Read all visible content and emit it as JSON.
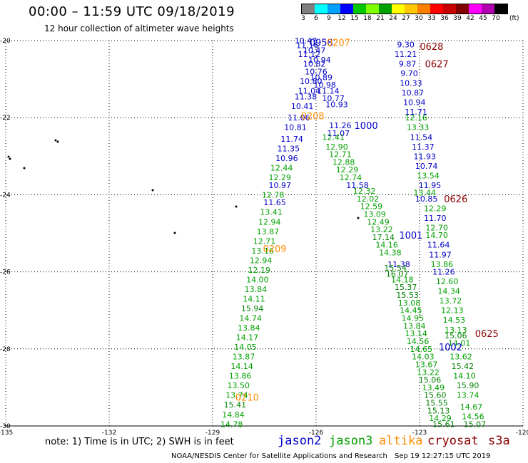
{
  "title": "00:00 – 11:59 UTC 09/18/2019",
  "subtitle": "12 hour collection of altimeter wave heights",
  "colorbar": {
    "labels": [
      "3",
      "6",
      "9",
      "12",
      "15",
      "18",
      "21",
      "24",
      "27",
      "30",
      "33",
      "36",
      "39",
      "42",
      "45",
      "70"
    ],
    "units": "(ft)",
    "colors": [
      "#808080",
      "#00ffff",
      "#00a0ff",
      "#0000ff",
      "#00c800",
      "#80ff00",
      "#00a000",
      "#ffff00",
      "#ffc800",
      "#ff8000",
      "#ff0000",
      "#c80000",
      "#800000",
      "#ff00ff",
      "#b000b0",
      "#000000"
    ]
  },
  "axes": {
    "lat_labels": [
      "-20",
      "-22",
      "-24",
      "-26",
      "-28",
      "-30"
    ],
    "lon_labels": [
      "-135",
      "-132",
      "-129",
      "-126",
      "-123",
      "-120"
    ]
  },
  "satellites": {
    "jason2": {
      "name": "jason2",
      "color": "#0000c8"
    },
    "jason3": {
      "name": "jason3",
      "color": "#00a000"
    },
    "altika": {
      "name": "altika",
      "color": "#ff8c00"
    },
    "cryosat": {
      "name": "cryosat",
      "color": "#8b0000"
    },
    "s3a": {
      "name": "s3a",
      "color": "#8b0000"
    }
  },
  "track_times": [
    {
      "text": "0958",
      "color": "#0000c8",
      "lat": -20.05,
      "lon": -125.85
    },
    {
      "text": "0207",
      "color": "#ff8c00",
      "lat": -20.05,
      "lon": -125.35
    },
    {
      "text": "0628",
      "color": "#8b0000",
      "lat": -20.15,
      "lon": -122.65
    },
    {
      "text": "0627",
      "color": "#8b0000",
      "lat": -20.6,
      "lon": -122.5
    },
    {
      "text": "0208",
      "color": "#ff8c00",
      "lat": -21.95,
      "lon": -126.1
    },
    {
      "text": "1000",
      "color": "#0000c8",
      "lat": -22.2,
      "lon": -124.55
    },
    {
      "text": "0626",
      "color": "#8b0000",
      "lat": -24.1,
      "lon": -121.95
    },
    {
      "text": "1001",
      "color": "#0000c8",
      "lat": -25.05,
      "lon": -123.25
    },
    {
      "text": "0209",
      "color": "#ff8c00",
      "lat": -25.4,
      "lon": -127.2
    },
    {
      "text": "0625",
      "color": "#8b0000",
      "lat": -27.6,
      "lon": -121.05
    },
    {
      "text": "1002",
      "color": "#0000c8",
      "lat": -27.95,
      "lon": -122.1
    },
    {
      "text": "0210",
      "color": "#ff8c00",
      "lat": -29.25,
      "lon": -128.0
    }
  ],
  "wave_heights": [
    {
      "v": "10.47",
      "c": "#0000c8",
      "lat": -20.0,
      "lon": -126.3
    },
    {
      "v": "11.16",
      "c": "#0000c8",
      "lat": -20.12,
      "lon": -126.25
    },
    {
      "v": "10.47",
      "c": "#0000c8",
      "lat": -20.25,
      "lon": -126.05
    },
    {
      "v": "11.12",
      "c": "#0000c8",
      "lat": -20.35,
      "lon": -126.2
    },
    {
      "v": "10.94",
      "c": "#0000c8",
      "lat": -20.5,
      "lon": -125.9
    },
    {
      "v": "10.82",
      "c": "#0000c8",
      "lat": -20.6,
      "lon": -126.05
    },
    {
      "v": "10.76",
      "c": "#0000c8",
      "lat": -20.8,
      "lon": -126.0
    },
    {
      "v": "10.89",
      "c": "#0000c8",
      "lat": -20.95,
      "lon": -125.85
    },
    {
      "v": "10.80",
      "c": "#0000c8",
      "lat": -21.05,
      "lon": -126.15
    },
    {
      "v": "10.98",
      "c": "#0000c8",
      "lat": -21.15,
      "lon": -125.75
    },
    {
      "v": "11.04",
      "c": "#0000c8",
      "lat": -21.3,
      "lon": -126.2
    },
    {
      "v": "11.14",
      "c": "#0000c8",
      "lat": -21.3,
      "lon": -125.65
    },
    {
      "v": "11.38",
      "c": "#0000c8",
      "lat": -21.45,
      "lon": -126.3
    },
    {
      "v": "10.77",
      "c": "#0000c8",
      "lat": -21.5,
      "lon": -125.5
    },
    {
      "v": "10.93",
      "c": "#0000c8",
      "lat": -21.65,
      "lon": -125.4
    },
    {
      "v": "10.41",
      "c": "#0000c8",
      "lat": -21.7,
      "lon": -126.4
    },
    {
      "v": "11.06",
      "c": "#0000c8",
      "lat": -22.0,
      "lon": -126.5
    },
    {
      "v": "11.26",
      "c": "#0000c8",
      "lat": -22.2,
      "lon": -125.3
    },
    {
      "v": "10.81",
      "c": "#0000c8",
      "lat": -22.25,
      "lon": -126.6
    },
    {
      "v": "11.07",
      "c": "#0000c8",
      "lat": -22.4,
      "lon": -125.35
    },
    {
      "v": "11.74",
      "c": "#0000c8",
      "lat": -22.55,
      "lon": -126.7
    },
    {
      "v": "11.35",
      "c": "#0000c8",
      "lat": -22.8,
      "lon": -126.8
    },
    {
      "v": "10.96",
      "c": "#0000c8",
      "lat": -23.05,
      "lon": -126.85
    },
    {
      "v": "10.97",
      "c": "#0000c8",
      "lat": -23.75,
      "lon": -127.05
    },
    {
      "v": "11.65",
      "c": "#0000c8",
      "lat": -24.2,
      "lon": -127.2
    },
    {
      "v": "11.58",
      "c": "#0000c8",
      "lat": -23.75,
      "lon": -124.8
    },
    {
      "v": "9.30",
      "c": "#0000c8",
      "lat": -20.1,
      "lon": -123.4
    },
    {
      "v": "11.21",
      "c": "#0000c8",
      "lat": -20.35,
      "lon": -123.4
    },
    {
      "v": "9.87",
      "c": "#0000c8",
      "lat": -20.6,
      "lon": -123.35
    },
    {
      "v": "9.70",
      "c": "#0000c8",
      "lat": -20.85,
      "lon": -123.3
    },
    {
      "v": "10.33",
      "c": "#0000c8",
      "lat": -21.1,
      "lon": -123.25
    },
    {
      "v": "10.87",
      "c": "#0000c8",
      "lat": -21.35,
      "lon": -123.2
    },
    {
      "v": "10.94",
      "c": "#0000c8",
      "lat": -21.6,
      "lon": -123.15
    },
    {
      "v": "11.71",
      "c": "#0000c8",
      "lat": -21.85,
      "lon": -123.1
    },
    {
      "v": "11.54",
      "c": "#0000c8",
      "lat": -22.5,
      "lon": -122.95
    },
    {
      "v": "11.37",
      "c": "#0000c8",
      "lat": -22.75,
      "lon": -122.9
    },
    {
      "v": "11.93",
      "c": "#0000c8",
      "lat": -23.0,
      "lon": -122.85
    },
    {
      "v": "10.74",
      "c": "#0000c8",
      "lat": -23.25,
      "lon": -122.8
    },
    {
      "v": "11.95",
      "c": "#0000c8",
      "lat": -23.75,
      "lon": -122.7
    },
    {
      "v": "10.85",
      "c": "#0000c8",
      "lat": -24.1,
      "lon": -122.8
    },
    {
      "v": "11.70",
      "c": "#0000c8",
      "lat": -24.6,
      "lon": -122.55
    },
    {
      "v": "11.64",
      "c": "#0000c8",
      "lat": -25.3,
      "lon": -122.45
    },
    {
      "v": "11.97",
      "c": "#0000c8",
      "lat": -25.55,
      "lon": -122.4
    },
    {
      "v": "11.26",
      "c": "#0000c8",
      "lat": -26.0,
      "lon": -122.3
    },
    {
      "v": "11.38",
      "c": "#0000c8",
      "lat": -25.8,
      "lon": -123.6
    },
    {
      "v": "12.41",
      "c": "#00a000",
      "lat": -22.5,
      "lon": -125.5
    },
    {
      "v": "12.90",
      "c": "#00a000",
      "lat": -22.75,
      "lon": -125.4
    },
    {
      "v": "12.71",
      "c": "#00a000",
      "lat": -22.95,
      "lon": -125.3
    },
    {
      "v": "12.88",
      "c": "#00a000",
      "lat": -23.15,
      "lon": -125.2
    },
    {
      "v": "12.29",
      "c": "#00a000",
      "lat": -23.35,
      "lon": -125.1
    },
    {
      "v": "12.74",
      "c": "#00a000",
      "lat": -23.55,
      "lon": -125.0
    },
    {
      "v": "12.32",
      "c": "#00a000",
      "lat": -23.9,
      "lon": -124.6
    },
    {
      "v": "12.02",
      "c": "#00a000",
      "lat": -24.1,
      "lon": -124.5
    },
    {
      "v": "12.59",
      "c": "#00a000",
      "lat": -24.3,
      "lon": -124.4
    },
    {
      "v": "13.09",
      "c": "#00a000",
      "lat": -24.5,
      "lon": -124.3
    },
    {
      "v": "12.49",
      "c": "#00a000",
      "lat": -24.7,
      "lon": -124.2
    },
    {
      "v": "13.22",
      "c": "#00a000",
      "lat": -24.9,
      "lon": -124.1
    },
    {
      "v": "17.14",
      "c": "#008000",
      "lat": -25.1,
      "lon": -124.05
    },
    {
      "v": "14.16",
      "c": "#00a000",
      "lat": -25.3,
      "lon": -123.95
    },
    {
      "v": "14.38",
      "c": "#00a000",
      "lat": -25.5,
      "lon": -123.85
    },
    {
      "v": "15.54",
      "c": "#008000",
      "lat": -25.9,
      "lon": -123.7
    },
    {
      "v": "16.07",
      "c": "#008000",
      "lat": -26.05,
      "lon": -123.65
    },
    {
      "v": "14.18",
      "c": "#00a000",
      "lat": -26.2,
      "lon": -123.5
    },
    {
      "v": "15.37",
      "c": "#008000",
      "lat": -26.4,
      "lon": -123.4
    },
    {
      "v": "15.53",
      "c": "#008000",
      "lat": -26.6,
      "lon": -123.35
    },
    {
      "v": "13.08",
      "c": "#00a000",
      "lat": -26.8,
      "lon": -123.3
    },
    {
      "v": "14.45",
      "c": "#00a000",
      "lat": -27.0,
      "lon": -123.25
    },
    {
      "v": "14.95",
      "c": "#00a000",
      "lat": -27.2,
      "lon": -123.2
    },
    {
      "v": "13.84",
      "c": "#00a000",
      "lat": -27.4,
      "lon": -123.15
    },
    {
      "v": "13.14",
      "c": "#00a000",
      "lat": -27.6,
      "lon": -123.1
    },
    {
      "v": "14.56",
      "c": "#00a000",
      "lat": -27.8,
      "lon": -123.05
    },
    {
      "v": "14.65",
      "c": "#00a000",
      "lat": -28.0,
      "lon": -122.95
    },
    {
      "v": "14.03",
      "c": "#00a000",
      "lat": -28.2,
      "lon": -122.9
    },
    {
      "v": "13.67",
      "c": "#00a000",
      "lat": -28.4,
      "lon": -122.8
    },
    {
      "v": "13.22",
      "c": "#00a000",
      "lat": -28.6,
      "lon": -122.75
    },
    {
      "v": "15.06",
      "c": "#008000",
      "lat": -28.8,
      "lon": -122.7
    },
    {
      "v": "13.49",
      "c": "#00a000",
      "lat": -29.0,
      "lon": -122.6
    },
    {
      "v": "15.60",
      "c": "#008000",
      "lat": -29.2,
      "lon": -122.55
    },
    {
      "v": "15.55",
      "c": "#008000",
      "lat": -29.4,
      "lon": -122.5
    },
    {
      "v": "15.13",
      "c": "#008000",
      "lat": -29.6,
      "lon": -122.45
    },
    {
      "v": "14.29",
      "c": "#00a000",
      "lat": -29.8,
      "lon": -122.4
    },
    {
      "v": "15.61",
      "c": "#008000",
      "lat": -29.95,
      "lon": -122.3
    },
    {
      "v": "12.16",
      "c": "#00a000",
      "lat": -22.0,
      "lon": -123.1
    },
    {
      "v": "13.33",
      "c": "#00a000",
      "lat": -22.25,
      "lon": -123.05
    },
    {
      "v": "13.54",
      "c": "#00a000",
      "lat": -23.5,
      "lon": -122.75
    },
    {
      "v": "13.44",
      "c": "#00a000",
      "lat": -23.95,
      "lon": -122.85
    },
    {
      "v": "12.29",
      "c": "#00a000",
      "lat": -24.35,
      "lon": -122.55
    },
    {
      "v": "12.70",
      "c": "#00a000",
      "lat": -24.85,
      "lon": -122.5
    },
    {
      "v": "14.70",
      "c": "#00a000",
      "lat": -25.05,
      "lon": -122.5
    },
    {
      "v": "13.86",
      "c": "#00a000",
      "lat": -25.8,
      "lon": -122.35
    },
    {
      "v": "12.60",
      "c": "#00a000",
      "lat": -26.25,
      "lon": -122.2
    },
    {
      "v": "14.34",
      "c": "#00a000",
      "lat": -26.5,
      "lon": -122.15
    },
    {
      "v": "13.72",
      "c": "#00a000",
      "lat": -26.75,
      "lon": -122.1
    },
    {
      "v": "12.13",
      "c": "#00a000",
      "lat": -27.0,
      "lon": -122.05
    },
    {
      "v": "14.53",
      "c": "#00a000",
      "lat": -27.25,
      "lon": -122.0
    },
    {
      "v": "13.13",
      "c": "#00a000",
      "lat": -27.5,
      "lon": -121.95
    },
    {
      "v": "15.06",
      "c": "#008000",
      "lat": -27.65,
      "lon": -121.95
    },
    {
      "v": "14.01",
      "c": "#00a000",
      "lat": -27.85,
      "lon": -121.85
    },
    {
      "v": "13.62",
      "c": "#00a000",
      "lat": -28.2,
      "lon": -121.8
    },
    {
      "v": "15.42",
      "c": "#008000",
      "lat": -28.45,
      "lon": -121.75
    },
    {
      "v": "14.10",
      "c": "#00a000",
      "lat": -28.7,
      "lon": -121.7
    },
    {
      "v": "15.90",
      "c": "#008000",
      "lat": -28.95,
      "lon": -121.6
    },
    {
      "v": "13.74",
      "c": "#00a000",
      "lat": -29.2,
      "lon": -121.6
    },
    {
      "v": "14.67",
      "c": "#00a000",
      "lat": -29.5,
      "lon": -121.5
    },
    {
      "v": "14.56",
      "c": "#00a000",
      "lat": -29.75,
      "lon": -121.45
    },
    {
      "v": "15.07",
      "c": "#008000",
      "lat": -29.95,
      "lon": -121.4
    },
    {
      "v": "12.44",
      "c": "#00a000",
      "lat": -23.3,
      "lon": -127.0
    },
    {
      "v": "12.29",
      "c": "#00a000",
      "lat": -23.55,
      "lon": -127.05
    },
    {
      "v": "12.78",
      "c": "#00a000",
      "lat": -24.0,
      "lon": -127.25
    },
    {
      "v": "13.41",
      "c": "#00a000",
      "lat": -24.45,
      "lon": -127.3
    },
    {
      "v": "12.94",
      "c": "#00a000",
      "lat": -24.7,
      "lon": -127.35
    },
    {
      "v": "13.87",
      "c": "#00a000",
      "lat": -24.95,
      "lon": -127.4
    },
    {
      "v": "12.71",
      "c": "#00a000",
      "lat": -25.2,
      "lon": -127.5
    },
    {
      "v": "13.16",
      "c": "#00a000",
      "lat": -25.45,
      "lon": -127.55
    },
    {
      "v": "12.94",
      "c": "#00a000",
      "lat": -25.7,
      "lon": -127.6
    },
    {
      "v": "12.19",
      "c": "#00a000",
      "lat": -25.95,
      "lon": -127.65
    },
    {
      "v": "14.00",
      "c": "#00a000",
      "lat": -26.2,
      "lon": -127.7
    },
    {
      "v": "13.84",
      "c": "#00a000",
      "lat": -26.45,
      "lon": -127.75
    },
    {
      "v": "14.11",
      "c": "#00a000",
      "lat": -26.7,
      "lon": -127.8
    },
    {
      "v": "15.94",
      "c": "#008000",
      "lat": -26.95,
      "lon": -127.85
    },
    {
      "v": "14.74",
      "c": "#00a000",
      "lat": -27.2,
      "lon": -127.9
    },
    {
      "v": "13.84",
      "c": "#00a000",
      "lat": -27.45,
      "lon": -127.95
    },
    {
      "v": "14.17",
      "c": "#00a000",
      "lat": -27.7,
      "lon": -128.0
    },
    {
      "v": "14.05",
      "c": "#00a000",
      "lat": -27.95,
      "lon": -128.05
    },
    {
      "v": "13.87",
      "c": "#00a000",
      "lat": -28.2,
      "lon": -128.1
    },
    {
      "v": "14.14",
      "c": "#00a000",
      "lat": -28.45,
      "lon": -128.15
    },
    {
      "v": "13.86",
      "c": "#00a000",
      "lat": -28.7,
      "lon": -128.2
    },
    {
      "v": "13.50",
      "c": "#00a000",
      "lat": -28.95,
      "lon": -128.25
    },
    {
      "v": "13.74",
      "c": "#00a000",
      "lat": -29.2,
      "lon": -128.3
    },
    {
      "v": "15.41",
      "c": "#008000",
      "lat": -29.45,
      "lon": -128.35
    },
    {
      "v": "14.84",
      "c": "#00a000",
      "lat": -29.7,
      "lon": -128.4
    },
    {
      "v": "14.78",
      "c": "#00a000",
      "lat": -29.95,
      "lon": -128.45
    }
  ],
  "note": "note: 1) Time is in UTC; 2) SWH is in feet",
  "footer": {
    "source": "NOAA/NESDIS Center for Satellite Applications and Research",
    "timestamp": "Sep 19 12:27:15 UTC 2019"
  }
}
